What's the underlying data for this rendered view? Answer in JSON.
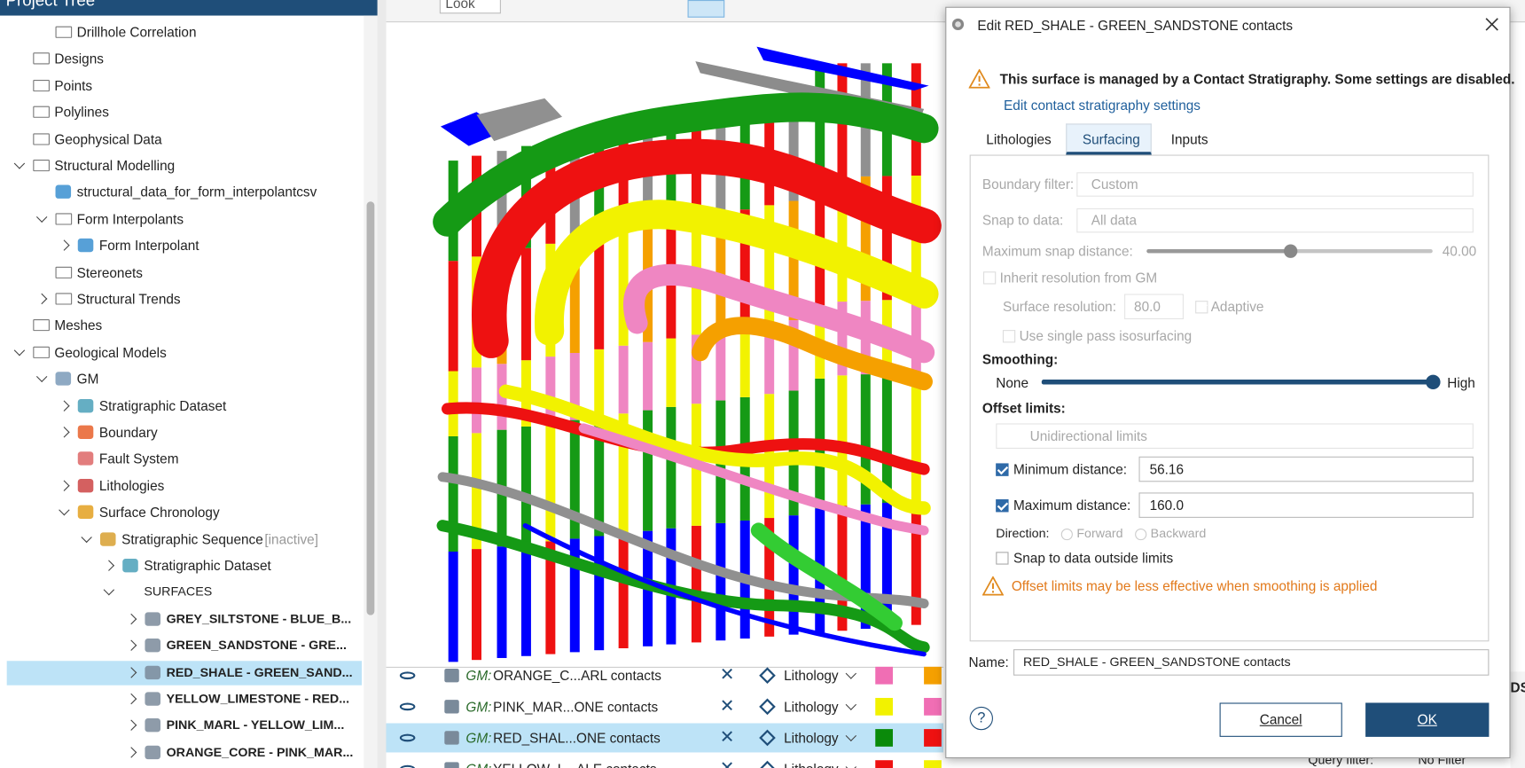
{
  "tree": {
    "title": "Project Tree",
    "items": [
      "Drillhole Correlation",
      "Designs",
      "Points",
      "Polylines",
      "Geophysical Data",
      "Structural Modelling",
      "structural_data_for_form_interpolantcsv",
      "Form Interpolants",
      "Form Interpolant",
      "Stereonets",
      "Structural Trends",
      "Meshes",
      "Geological Models",
      "GM",
      "Stratigraphic Dataset",
      "Boundary",
      "Fault System",
      "Lithologies",
      "Surface Chronology",
      "Stratigraphic Sequence",
      "Stratigraphic Dataset",
      "SURFACES",
      "GREY_SILTSTONE - BLUE_B...",
      "GREEN_SANDSTONE - GRE...",
      "RED_SHALE - GREEN_SAND...",
      "YELLOW_LIMESTONE - RED...",
      "PINK_MARL - YELLOW_LIM...",
      "ORANGE_CORE - PINK_MAR..."
    ],
    "inactive": "[inactive]"
  },
  "toolbar": {
    "view_mode": "Look"
  },
  "list": {
    "rows": [
      {
        "prefix": "GM:",
        "name": "ORANGE_C...ARL contacts",
        "type": "Lithology"
      },
      {
        "prefix": "GM:",
        "name": "PINK_MAR...ONE contacts",
        "type": "Lithology"
      },
      {
        "prefix": "GM:",
        "name": "RED_SHAL...ONE contacts",
        "type": "Lithology"
      },
      {
        "prefix": "GM:",
        "name": "YELLOW_L...ALE contacts",
        "type": "Lithology"
      }
    ]
  },
  "footer": {
    "query_label": "Query filter:",
    "query_value": "No Filter",
    "side_text": "DS"
  },
  "dialog": {
    "title": "Edit RED_SHALE - GREEN_SANDSTONE contacts",
    "warning": "This surface is managed by a Contact Stratigraphy. Some settings are disabled.",
    "link": "Edit contact stratigraphy settings",
    "tabs": [
      "Lithologies",
      "Surfacing",
      "Inputs"
    ],
    "boundary_filter": {
      "label": "Boundary filter:",
      "value": "Custom"
    },
    "snap_to_data": {
      "label": "Snap to data:",
      "value": "All data"
    },
    "max_snap": {
      "label": "Maximum snap distance:",
      "value": "40.00"
    },
    "inherit": "Inherit resolution from GM",
    "surface_resolution": {
      "label": "Surface resolution:",
      "value": "80.0",
      "adaptive": "Adaptive"
    },
    "single_pass": "Use single pass isosurfacing",
    "smoothing": {
      "label": "Smoothing:",
      "min": "None",
      "max": "High"
    },
    "offset_limits": {
      "label": "Offset limits:",
      "mode": "Unidirectional limits",
      "min_distance": {
        "label": "Minimum distance:",
        "value": "56.16"
      },
      "max_distance": {
        "label": "Maximum distance:",
        "value": "160.0"
      },
      "direction": {
        "label": "Direction:",
        "options": [
          "Forward",
          "Backward"
        ]
      },
      "snap_outside": "Snap to data outside limits",
      "note": "Offset limits may be less effective when smoothing is applied"
    },
    "name": {
      "label": "Name:",
      "value": "RED_SHALE - GREEN_SANDSTONE contacts"
    },
    "buttons": [
      "Cancel",
      "OK"
    ]
  }
}
